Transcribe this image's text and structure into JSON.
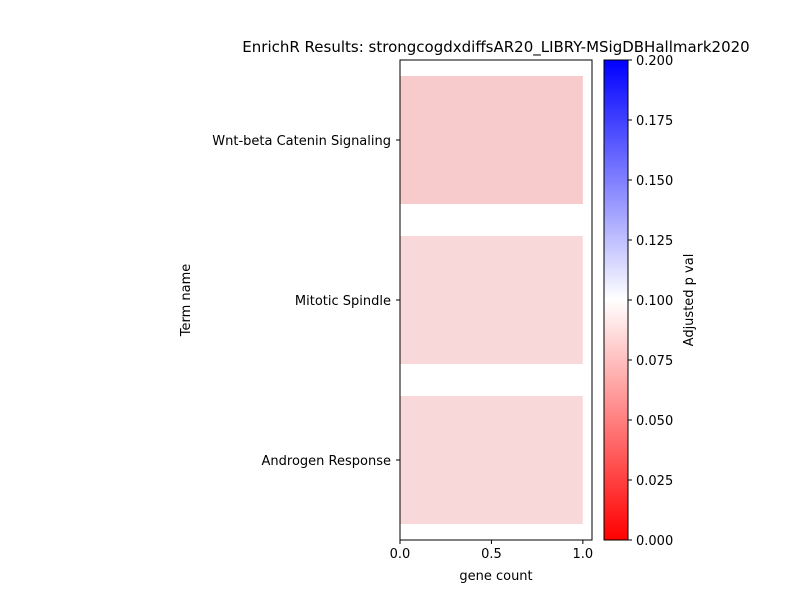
{
  "chart_data": {
    "type": "bar",
    "orientation": "horizontal",
    "title": "EnrichR Results: strongcogdxdiffsAR20_LIBRY-MSigDBHallmark2020",
    "xlabel": "gene count",
    "ylabel": "Term name",
    "xlim": [
      0,
      1.05
    ],
    "xticks": [
      "0.0",
      "0.5",
      "1.0"
    ],
    "categories": [
      "Wnt-beta Catenin Signaling",
      "Mitotic Spindle",
      "Androgen Response"
    ],
    "values": [
      1,
      1,
      1
    ],
    "bar_colors": [
      "#f7cbcb",
      "#f8d8d8",
      "#f8d8d8"
    ],
    "colorbar": {
      "label": "Adjusted p val",
      "range": [
        0,
        0.2
      ],
      "ticks": [
        "0.000",
        "0.025",
        "0.050",
        "0.075",
        "0.100",
        "0.125",
        "0.150",
        "0.175",
        "0.200"
      ],
      "colors": [
        "#ff0000",
        "#ffffff",
        "#0000ff"
      ]
    },
    "grid": false,
    "legend": "none"
  }
}
